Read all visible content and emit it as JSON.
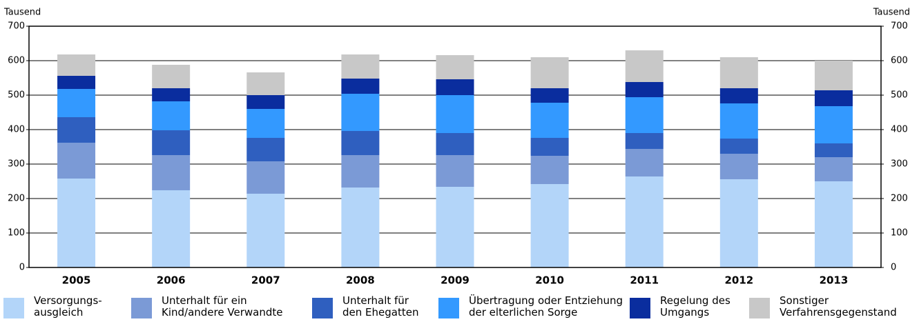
{
  "chart_data": {
    "type": "stacked-bar",
    "y_label": "Tausend",
    "y2_label": "Tausend",
    "categories": [
      "2005",
      "2006",
      "2007",
      "2008",
      "2009",
      "2010",
      "2011",
      "2012",
      "2013"
    ],
    "series": [
      {
        "name": "Versorgungs-\nausgleich",
        "color": "#b3d5f9",
        "values": [
          258,
          224,
          214,
          232,
          234,
          242,
          264,
          256,
          250
        ]
      },
      {
        "name": "Unterhalt für ein\nKind/andere Verwandte",
        "color": "#7b9ad6",
        "values": [
          104,
          102,
          94,
          94,
          92,
          82,
          80,
          74,
          70
        ]
      },
      {
        "name": "Unterhalt für\nden Ehegatten",
        "color": "#2f5fbf",
        "values": [
          74,
          72,
          68,
          70,
          64,
          52,
          46,
          44,
          40
        ]
      },
      {
        "name": "Übertragung oder Entziehung\nder elterlichen Sorge",
        "color": "#3399ff",
        "values": [
          82,
          84,
          84,
          108,
          110,
          102,
          104,
          102,
          108
        ]
      },
      {
        "name": "Regelung des\nUmgangs",
        "color": "#0a2d9e",
        "values": [
          38,
          38,
          40,
          44,
          46,
          42,
          44,
          44,
          46
        ]
      },
      {
        "name": "Sonstiger\nVerfahrensgegenstand",
        "color": "#c8c8c8",
        "values": [
          62,
          68,
          66,
          70,
          70,
          90,
          92,
          90,
          86
        ]
      }
    ],
    "ylim": [
      0,
      700
    ],
    "yticks": [
      0,
      100,
      200,
      300,
      400,
      500,
      600,
      700
    ],
    "y2lim": [
      0,
      700
    ],
    "y2ticks": [
      0,
      100,
      200,
      300,
      400,
      500,
      600,
      700
    ],
    "grid": true
  }
}
